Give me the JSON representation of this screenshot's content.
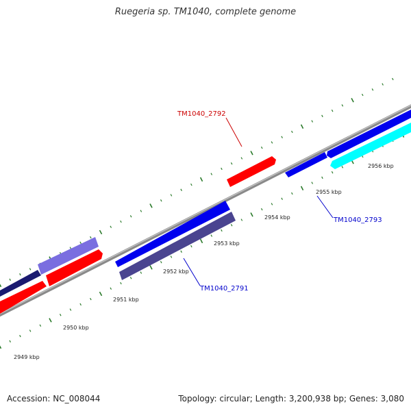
{
  "title": "Ruegeria sp. TM1040, complete genome",
  "footer": {
    "accession": "Accession: NC_008044",
    "stats": "Topology: circular; Length: 3,200,938 bp; Genes: 3,080"
  },
  "colors": {
    "backbone": "#8a8a8a",
    "tick": "#2a7a2a",
    "red": "#ff0000",
    "blue": "#0000ee",
    "slate": "#4a4490",
    "lavender": "#7a6ee0",
    "navy": "#1a1a70",
    "cyan": "#00ffff",
    "label_red": "#cc0000",
    "label_blue": "#0000cc"
  },
  "scale_labels": [
    {
      "kbp": 2949,
      "text": "2949 kbp"
    },
    {
      "kbp": 2950,
      "text": "2950 kbp"
    },
    {
      "kbp": 2951,
      "text": "2951 kbp"
    },
    {
      "kbp": 2952,
      "text": "2952 kbp"
    },
    {
      "kbp": 2953,
      "text": "2953 kbp"
    },
    {
      "kbp": 2954,
      "text": "2954 kbp"
    },
    {
      "kbp": 2955,
      "text": "2955 kbp"
    },
    {
      "kbp": 2956,
      "text": "2956 kbp"
    }
  ],
  "gene_labels": [
    {
      "text": "TM1040_2792",
      "color": "label_red"
    },
    {
      "text": "TM1040_2793",
      "color": "label_blue"
    },
    {
      "text": "TM1040_2791",
      "color": "label_blue"
    }
  ]
}
